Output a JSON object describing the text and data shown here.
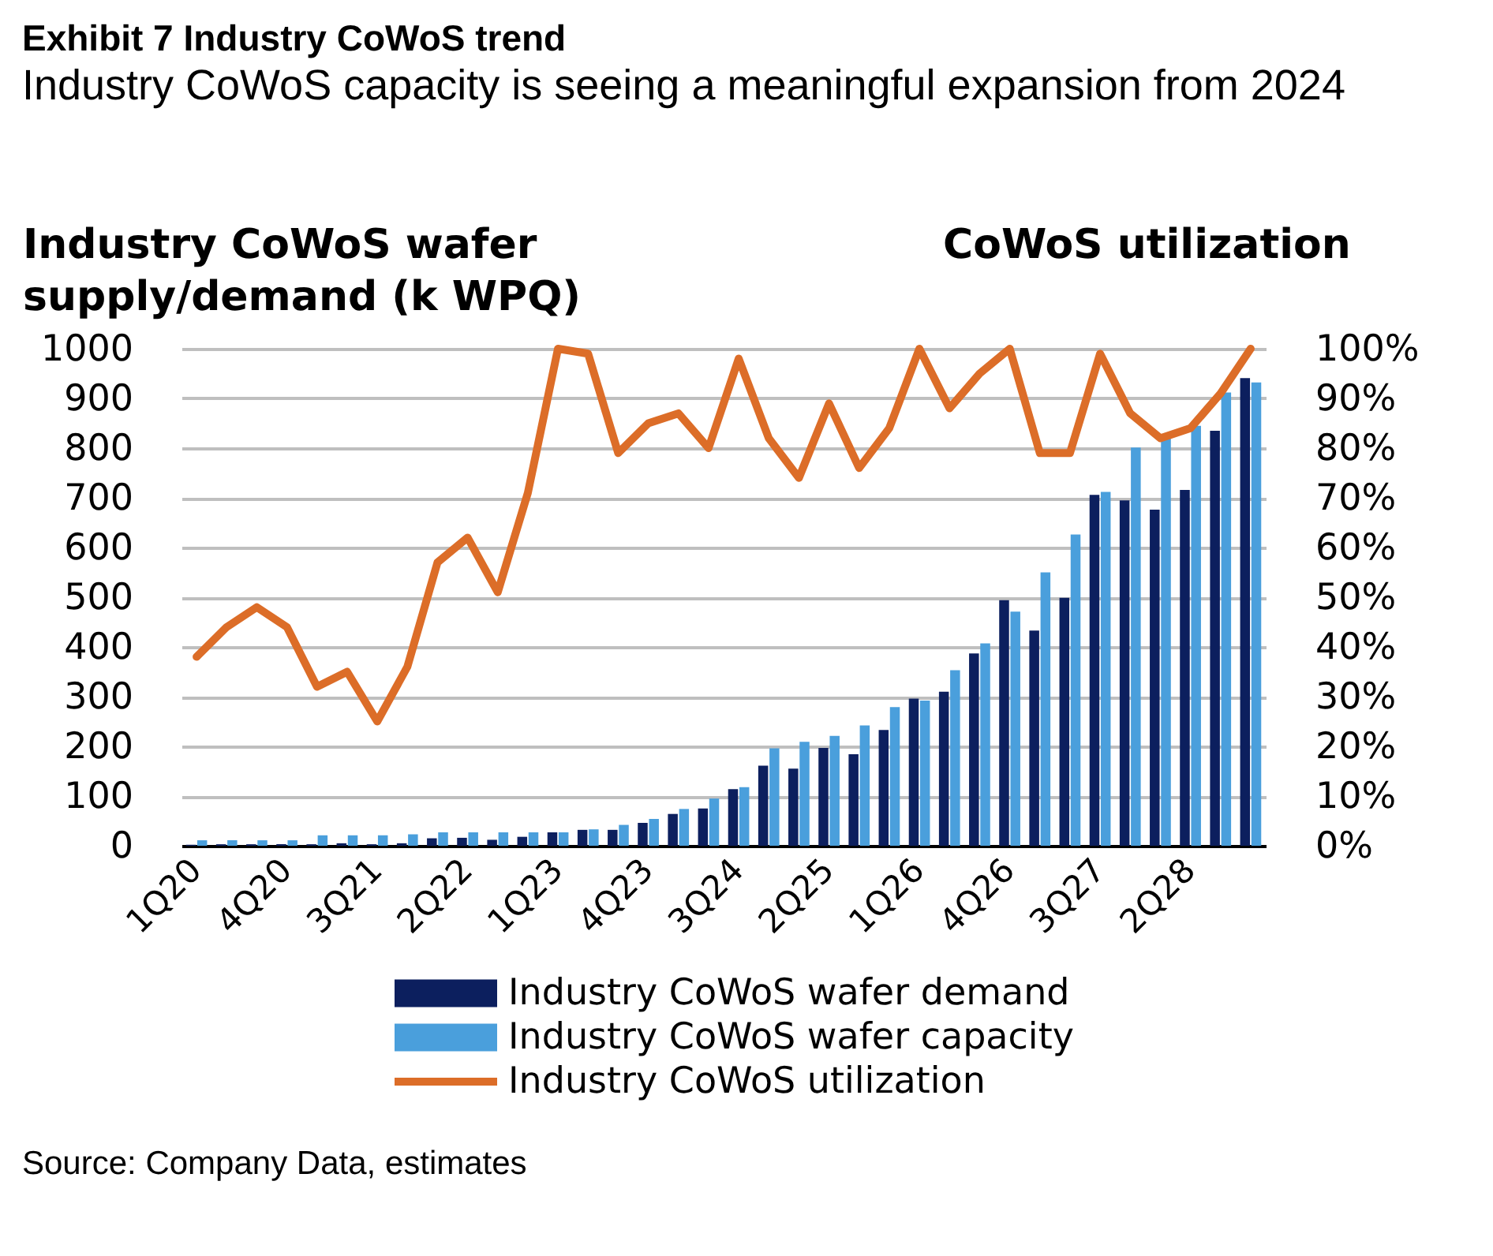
{
  "chart_data": {
    "type": "bar",
    "title": "Exhibit 7 Industry CoWoS trend",
    "subtitle": "Industry CoWoS capacity is seeing a meaningful expansion from 2024",
    "ylabel": "Industry CoWoS wafer supply/demand (k WPQ)",
    "y2label": "CoWoS utilization",
    "categories": [
      "1Q20",
      null,
      null,
      "4Q20",
      null,
      null,
      "3Q21",
      null,
      null,
      "2Q22",
      null,
      null,
      "1Q23",
      null,
      null,
      "4Q23",
      null,
      null,
      "3Q24",
      null,
      null,
      "2Q25",
      null,
      null,
      "1Q26",
      null,
      null,
      "4Q26",
      null,
      null,
      "3Q27",
      null,
      null,
      "2Q28",
      null,
      null
    ],
    "series": [
      {
        "name": "Industry CoWoS wafer demand",
        "color": "#0c1f5e",
        "values": [
          2,
          3,
          3,
          3,
          3,
          5,
          3,
          5,
          15,
          16,
          12,
          18,
          27,
          32,
          32,
          46,
          64,
          75,
          114,
          161,
          155,
          197,
          184,
          233,
          296,
          310,
          387,
          494,
          433,
          499,
          706,
          695,
          676,
          716,
          835,
          941
        ]
      },
      {
        "name": "Industry CoWoS wafer capacity",
        "color": "#4a9fdc",
        "values": [
          11,
          11,
          11,
          11,
          21,
          21,
          21,
          23,
          27,
          27,
          27,
          27,
          27,
          33,
          42,
          54,
          74,
          95,
          118,
          196,
          209,
          221,
          242,
          279,
          292,
          353,
          407,
          471,
          550,
          626,
          712,
          801,
          828,
          845,
          912,
          932
        ]
      },
      {
        "name": "Industry CoWoS utilization",
        "color": "#dc6d28",
        "type": "line",
        "axis": "y2",
        "values": [
          38,
          44,
          48,
          44,
          32,
          35,
          25,
          36,
          57,
          62,
          51,
          71,
          100,
          99,
          79,
          85,
          87,
          80,
          98,
          82,
          74,
          89,
          76,
          84,
          100,
          88,
          95,
          100,
          79,
          79,
          99,
          87,
          82,
          84,
          91,
          100
        ]
      }
    ],
    "ylim": [
      0,
      1000
    ],
    "yticks": [
      0,
      100,
      200,
      300,
      400,
      500,
      600,
      700,
      800,
      900,
      1000
    ],
    "y2lim": [
      0,
      100
    ],
    "y2ticks": [
      {
        "value": 0,
        "label": "0%"
      },
      {
        "value": 10,
        "label": "10%"
      },
      {
        "value": 20,
        "label": "20%"
      },
      {
        "value": 30,
        "label": "30%"
      },
      {
        "value": 40,
        "label": "40%"
      },
      {
        "value": 50,
        "label": "50%"
      },
      {
        "value": 60,
        "label": "60%"
      },
      {
        "value": 70,
        "label": "70%"
      },
      {
        "value": 80,
        "label": "80%"
      },
      {
        "value": 90,
        "label": "90%"
      },
      {
        "value": 100,
        "label": "100%"
      }
    ],
    "grid": "y",
    "legend": "bottom",
    "annotations": [
      "Source: Company Data, estimates"
    ]
  }
}
